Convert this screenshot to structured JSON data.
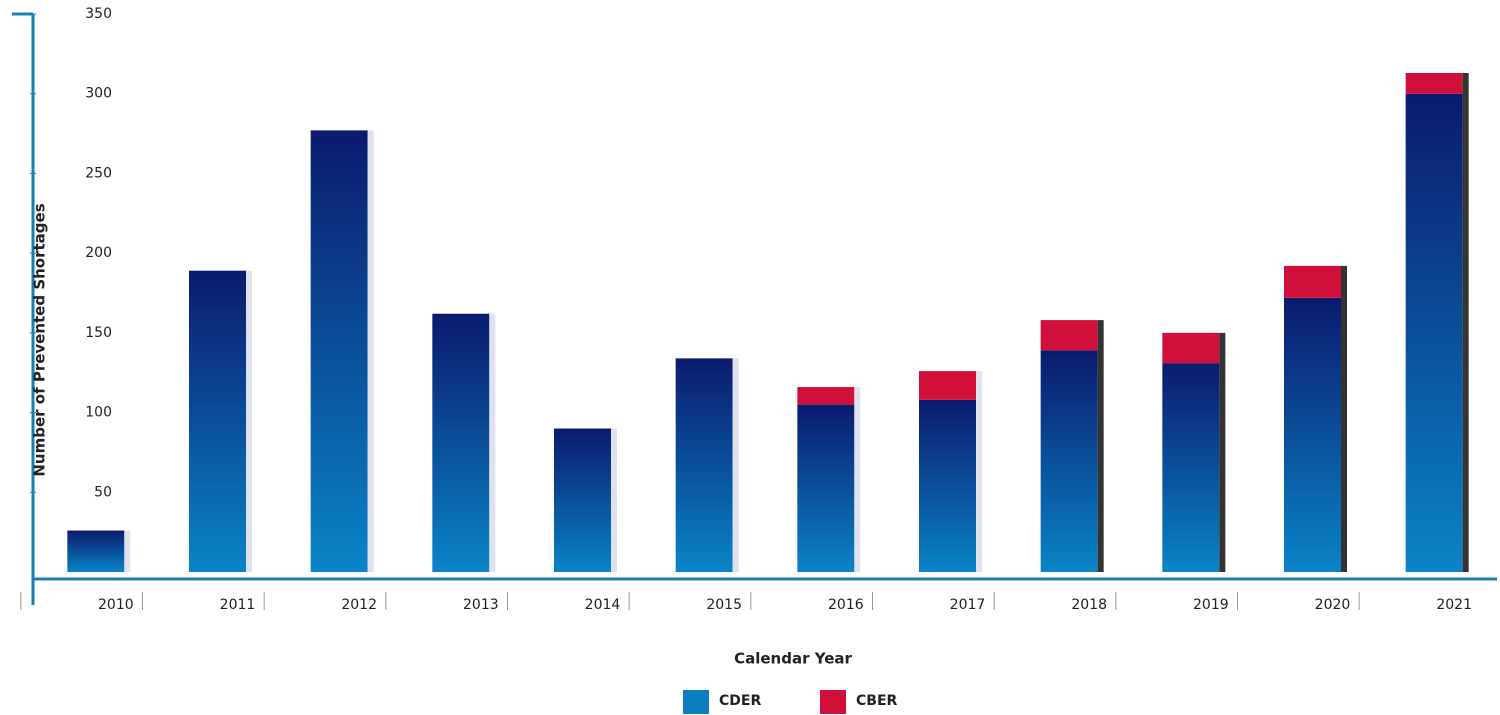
{
  "chart_data": {
    "type": "stacked-bar",
    "x_label": "Calendar Year",
    "y_label": "Number of Prevented Shortages",
    "categories": [
      "2010",
      "2011",
      "2012",
      "2013",
      "2014",
      "2015",
      "2016",
      "2017",
      "2018",
      "2019",
      "2020",
      "2021"
    ],
    "series": [
      {
        "name": "CDER",
        "color": "#0a7fc0",
        "values": [
          26,
          189,
          277,
          162,
          90,
          134,
          105,
          108,
          139,
          131,
          172,
          300
        ]
      },
      {
        "name": "CBER",
        "color": "#d0103a",
        "values": [
          null,
          null,
          null,
          null,
          null,
          null,
          11,
          18,
          19,
          19,
          20,
          13
        ]
      }
    ],
    "ylim": [
      0,
      350
    ],
    "yticks": [
      50,
      100,
      150,
      200,
      250,
      300,
      350
    ],
    "legend": "bottom"
  }
}
